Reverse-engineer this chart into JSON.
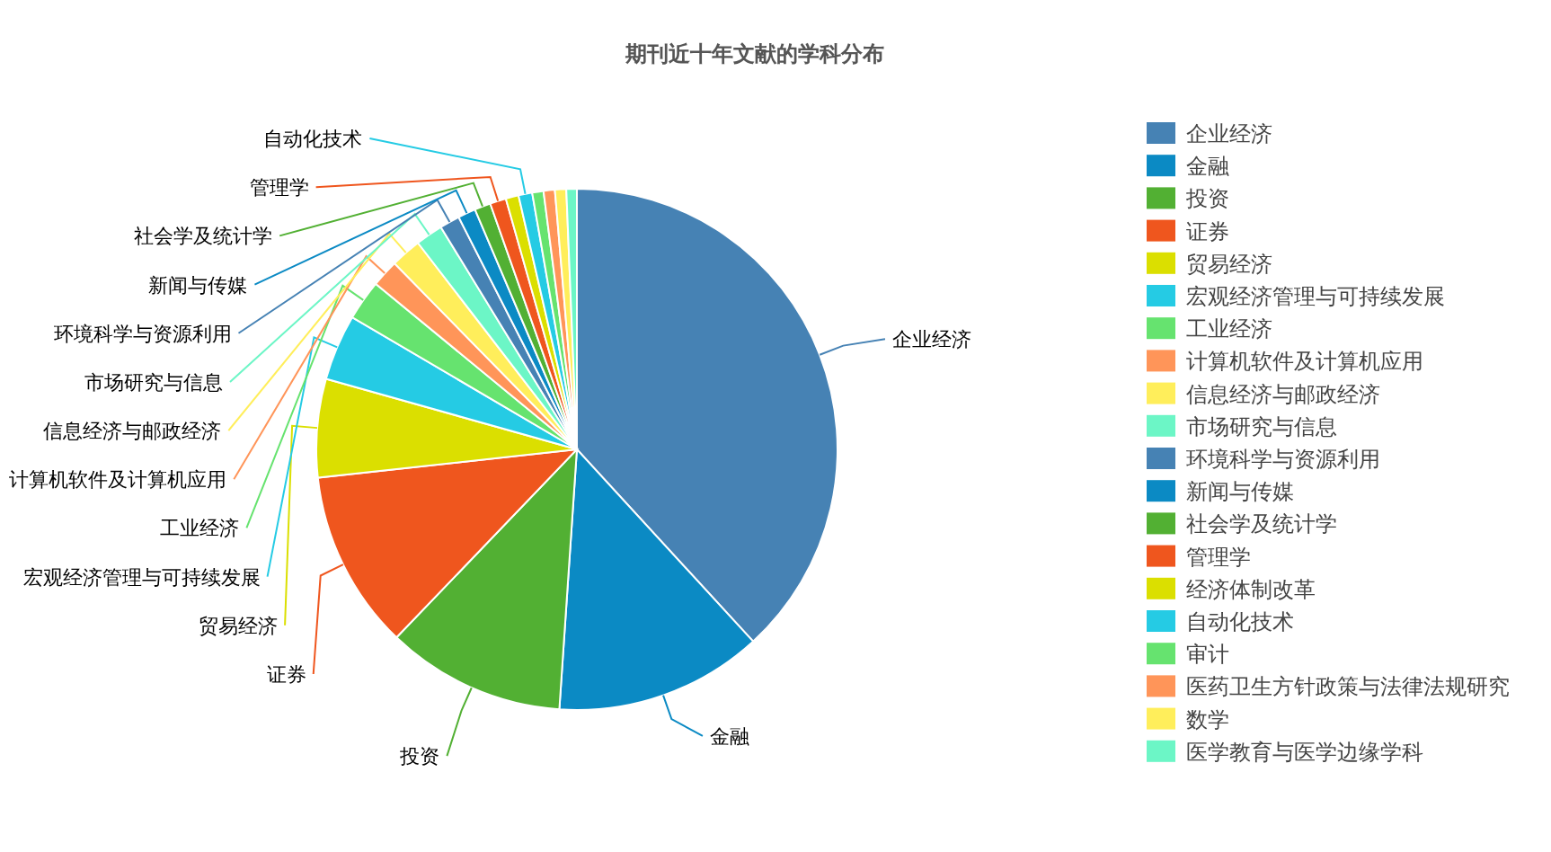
{
  "chart_data": {
    "type": "pie",
    "title": "期刊近十年文献的学科分布",
    "legend": "right",
    "categories": [
      "企业经济",
      "金融",
      "投资",
      "证券",
      "贸易经济",
      "宏观经济管理与可持续发展",
      "工业经济",
      "计算机软件及计算机应用",
      "信息经济与邮政经济",
      "市场研究与信息",
      "环境科学与资源利用",
      "新闻与传媒",
      "社会学及统计学",
      "管理学",
      "经济体制改革",
      "自动化技术",
      "审计",
      "医药卫生方针政策与法律法规研究",
      "数学",
      "医学教育与医学边缘学科"
    ],
    "values": [
      38.2,
      12.9,
      11.1,
      11.1,
      6.1,
      4.1,
      2.5,
      1.7,
      1.9,
      1.7,
      1.25,
      1.1,
      1.0,
      1.0,
      0.8,
      0.85,
      0.7,
      0.7,
      0.7,
      0.65
    ],
    "colors": [
      "#4682b4",
      "#0b8ac4",
      "#52b033",
      "#ef561e",
      "#dbdf00",
      "#25cbe4",
      "#66e36f",
      "#ff9559",
      "#ffee5b",
      "#6cf6c6",
      "#4682b4",
      "#0b8ac4",
      "#52b033",
      "#ef561e",
      "#dbdf00",
      "#25cbe4",
      "#66e36f",
      "#ff9559",
      "#ffee5b",
      "#6cf6c6"
    ]
  }
}
